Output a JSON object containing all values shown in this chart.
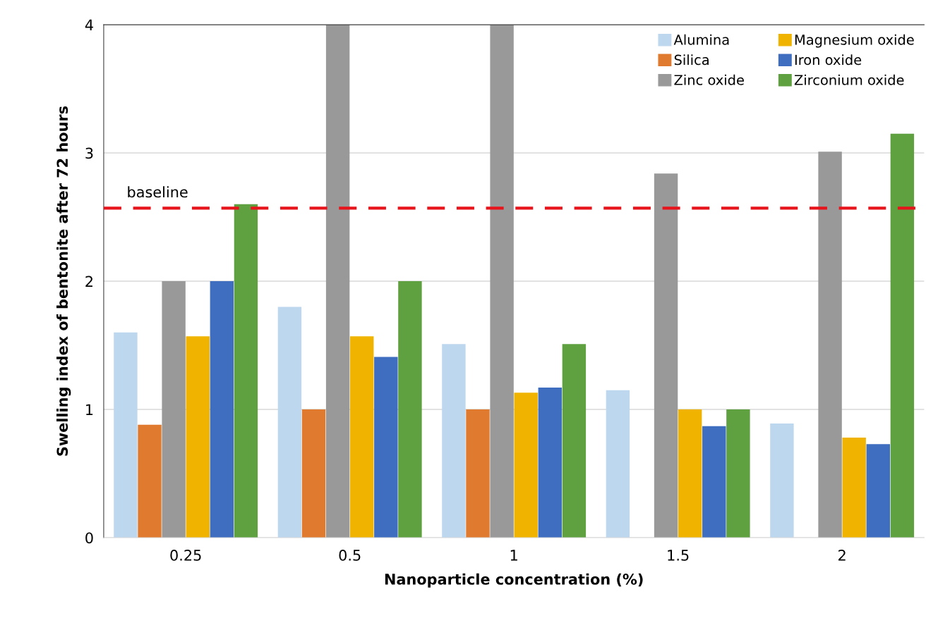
{
  "chart_data": {
    "type": "bar",
    "xlabel": "Nanoparticle concentration (%)",
    "ylabel": "Swelling index of bentonite after 72 hours",
    "categories": [
      "0.25",
      "0.5",
      "1",
      "1.5",
      "2"
    ],
    "series": [
      {
        "name": "Alumina",
        "color": "#bdd7ee",
        "values": [
          1.6,
          1.8,
          1.51,
          1.15,
          0.89
        ]
      },
      {
        "name": "Silica",
        "color": "#e07a2e",
        "values": [
          0.88,
          1.0,
          1.0,
          null,
          null
        ]
      },
      {
        "name": "Zinc oxide",
        "color": "#999999",
        "values": [
          2.0,
          4,
          4,
          2.84,
          3.01
        ]
      },
      {
        "name": "Magnesium oxide",
        "color": "#f0b400",
        "values": [
          1.57,
          1.57,
          1.13,
          1.0,
          0.78
        ]
      },
      {
        "name": "Iron oxide",
        "color": "#3f6dbf",
        "values": [
          2.0,
          1.41,
          1.17,
          0.87,
          0.73
        ]
      },
      {
        "name": "Zirconium oxide",
        "color": "#5fa040",
        "values": [
          2.6,
          2.0,
          1.51,
          1.0,
          3.15
        ]
      }
    ],
    "ylim": [
      0,
      4
    ],
    "yticks": [
      0,
      1,
      2,
      3,
      4
    ],
    "grid": "y",
    "legend": "top right",
    "ref_lines": [
      {
        "axis": "y",
        "value": 2.57,
        "label": "baseline",
        "color": "#e8141c",
        "line_style": "dashed"
      }
    ]
  }
}
